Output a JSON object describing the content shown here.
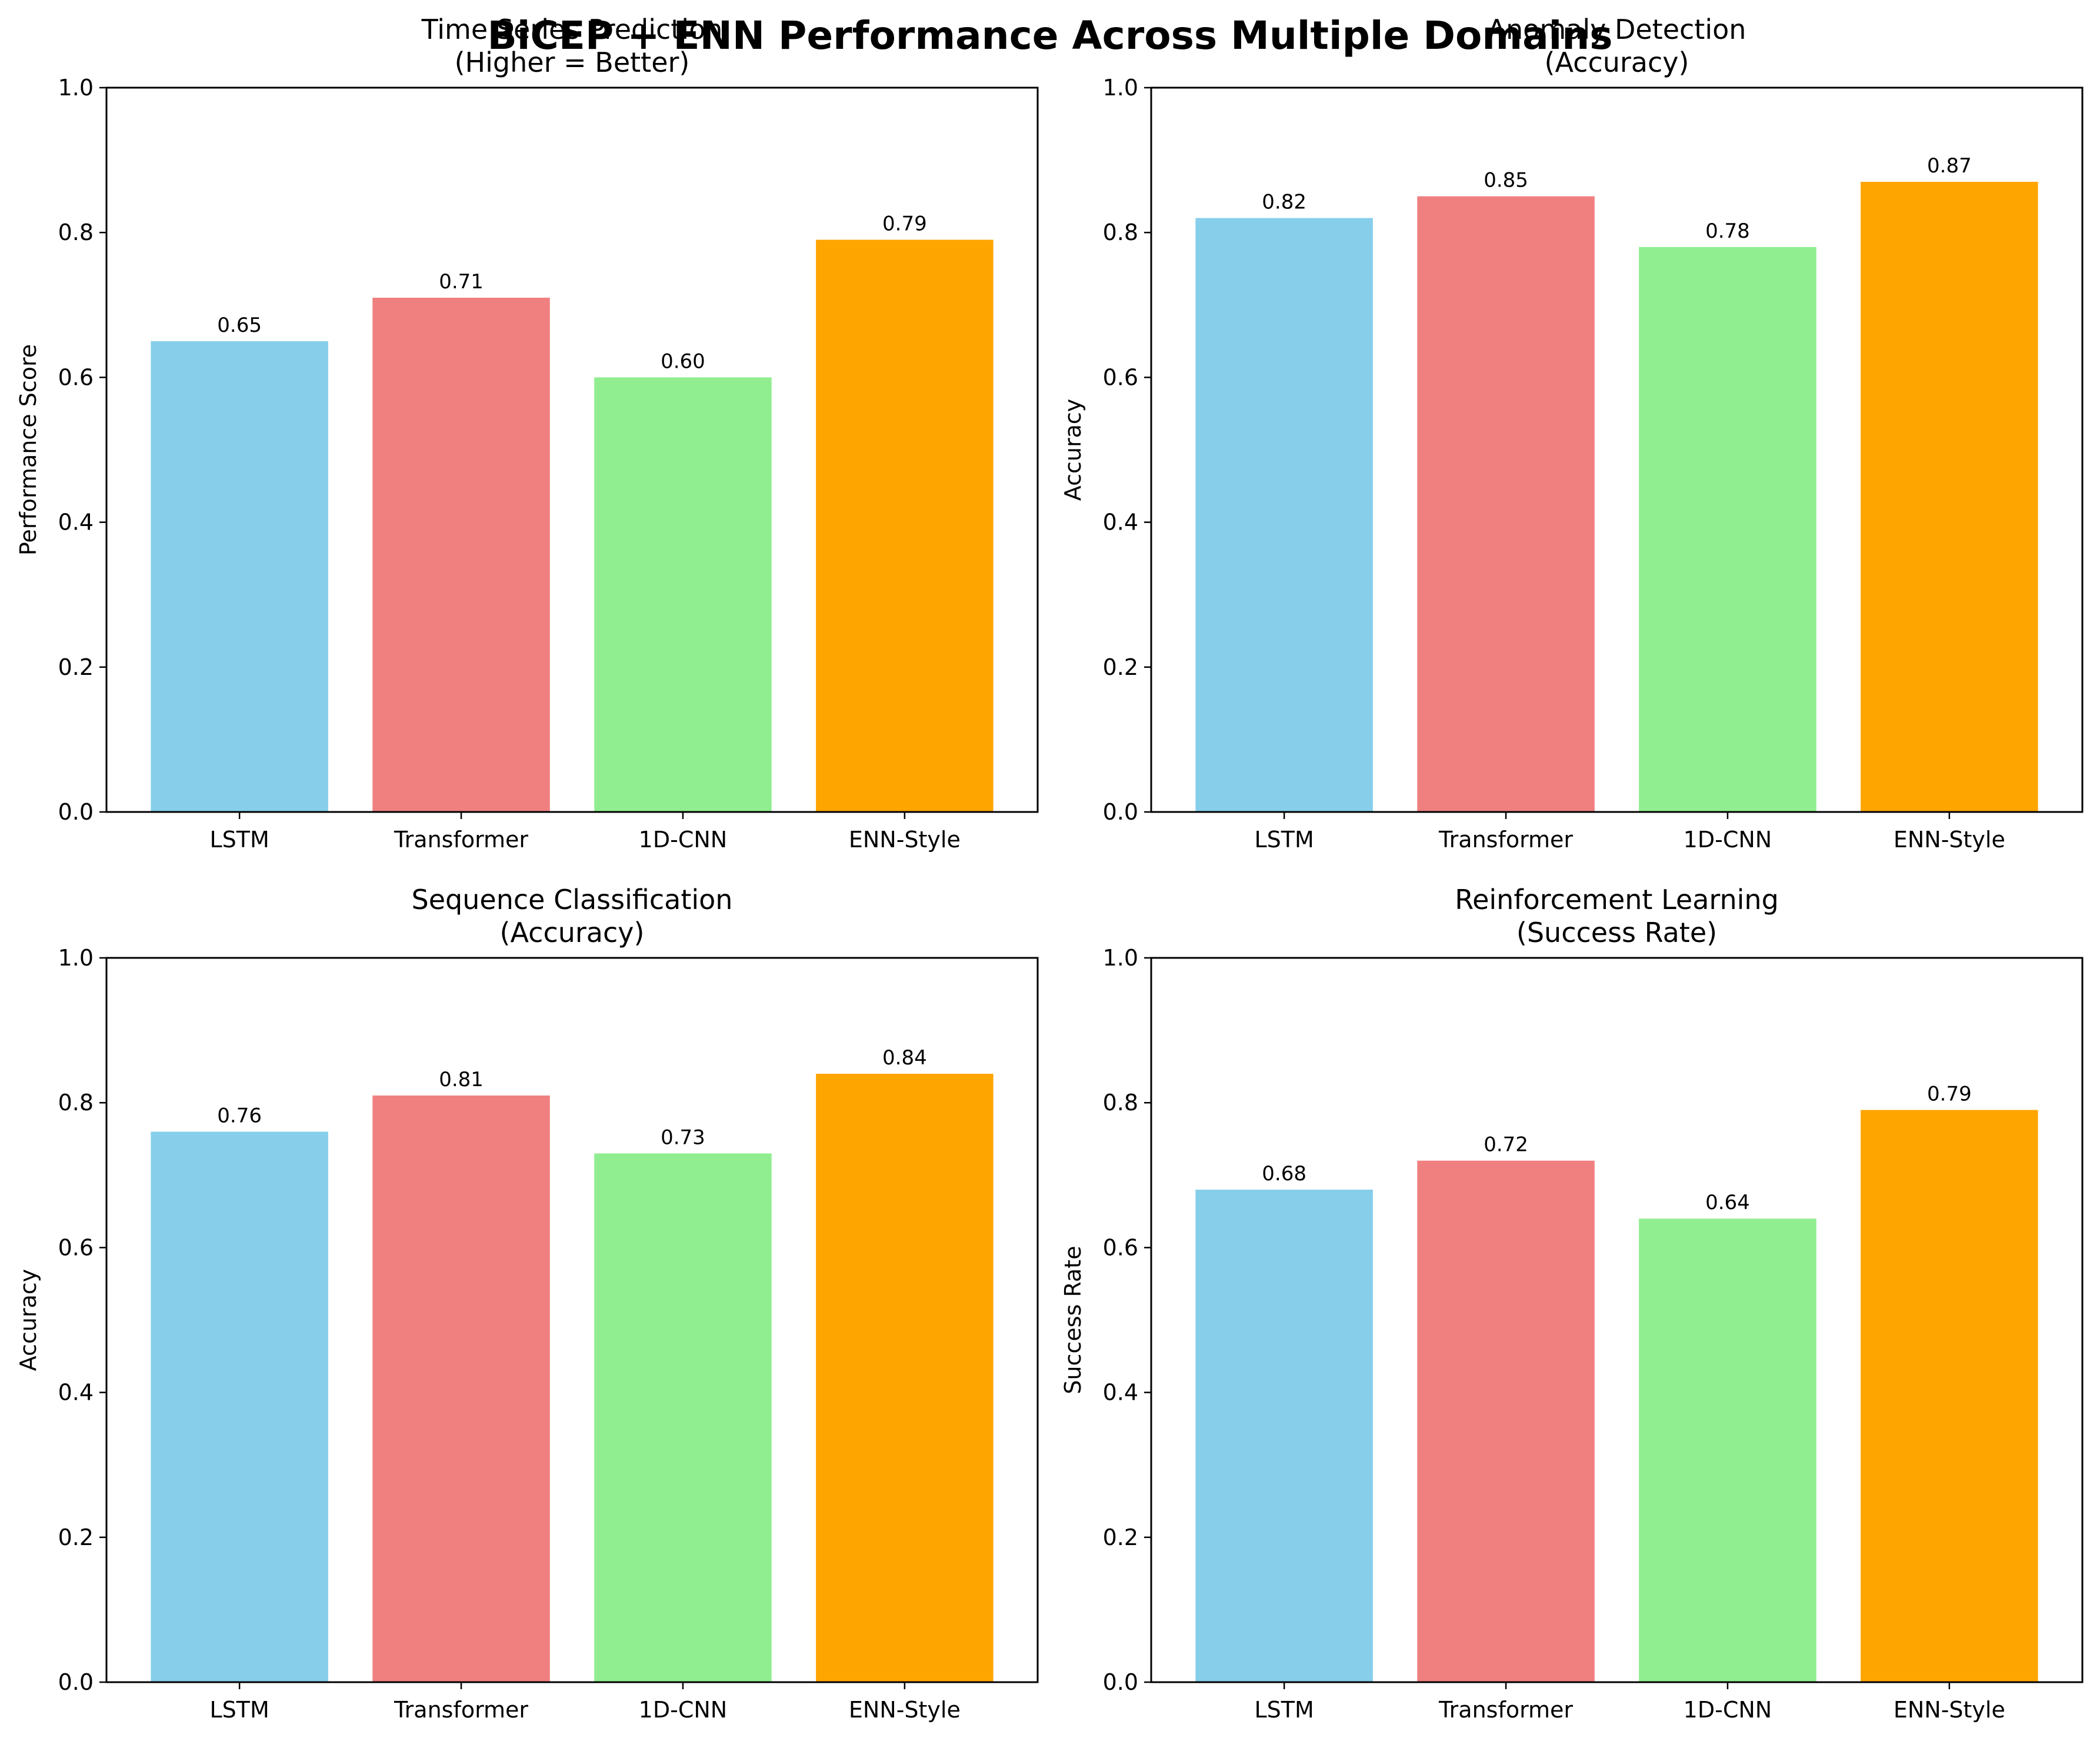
{
  "figure": {
    "suptitle": "BiCEP + ENN Performance Across Multiple Domains"
  },
  "chart_data": [
    {
      "type": "bar",
      "title": "Time Series Prediction\n(Higher = Better)",
      "xlabel": "",
      "ylabel": "Performance Score",
      "ylim": [
        0,
        1
      ],
      "yticks": [
        "0.0",
        "0.2",
        "0.4",
        "0.6",
        "0.8",
        "1.0"
      ],
      "categories": [
        "LSTM",
        "Transformer",
        "1D-CNN",
        "ENN-Style"
      ],
      "values": [
        0.65,
        0.71,
        0.6,
        0.79
      ],
      "value_labels": [
        "0.65",
        "0.71",
        "0.60",
        "0.79"
      ],
      "colors": [
        "#87CEEB",
        "#F08080",
        "#90EE90",
        "#FFA500"
      ],
      "grid": false
    },
    {
      "type": "bar",
      "title": "Anomaly Detection\n(Accuracy)",
      "xlabel": "",
      "ylabel": "Accuracy",
      "ylim": [
        0,
        1
      ],
      "yticks": [
        "0.0",
        "0.2",
        "0.4",
        "0.6",
        "0.8",
        "1.0"
      ],
      "categories": [
        "LSTM",
        "Transformer",
        "1D-CNN",
        "ENN-Style"
      ],
      "values": [
        0.82,
        0.85,
        0.78,
        0.87
      ],
      "value_labels": [
        "0.82",
        "0.85",
        "0.78",
        "0.87"
      ],
      "colors": [
        "#87CEEB",
        "#F08080",
        "#90EE90",
        "#FFA500"
      ],
      "grid": false
    },
    {
      "type": "bar",
      "title": "Sequence Classification\n(Accuracy)",
      "xlabel": "",
      "ylabel": "Accuracy",
      "ylim": [
        0,
        1
      ],
      "yticks": [
        "0.0",
        "0.2",
        "0.4",
        "0.6",
        "0.8",
        "1.0"
      ],
      "categories": [
        "LSTM",
        "Transformer",
        "1D-CNN",
        "ENN-Style"
      ],
      "values": [
        0.76,
        0.81,
        0.73,
        0.84
      ],
      "value_labels": [
        "0.76",
        "0.81",
        "0.73",
        "0.84"
      ],
      "colors": [
        "#87CEEB",
        "#F08080",
        "#90EE90",
        "#FFA500"
      ],
      "grid": false
    },
    {
      "type": "bar",
      "title": "Reinforcement Learning\n(Success Rate)",
      "xlabel": "",
      "ylabel": "Success Rate",
      "ylim": [
        0,
        1
      ],
      "yticks": [
        "0.0",
        "0.2",
        "0.4",
        "0.6",
        "0.8",
        "1.0"
      ],
      "categories": [
        "LSTM",
        "Transformer",
        "1D-CNN",
        "ENN-Style"
      ],
      "values": [
        0.68,
        0.72,
        0.64,
        0.79
      ],
      "value_labels": [
        "0.68",
        "0.72",
        "0.64",
        "0.79"
      ],
      "colors": [
        "#87CEEB",
        "#F08080",
        "#90EE90",
        "#FFA500"
      ],
      "grid": false
    }
  ]
}
